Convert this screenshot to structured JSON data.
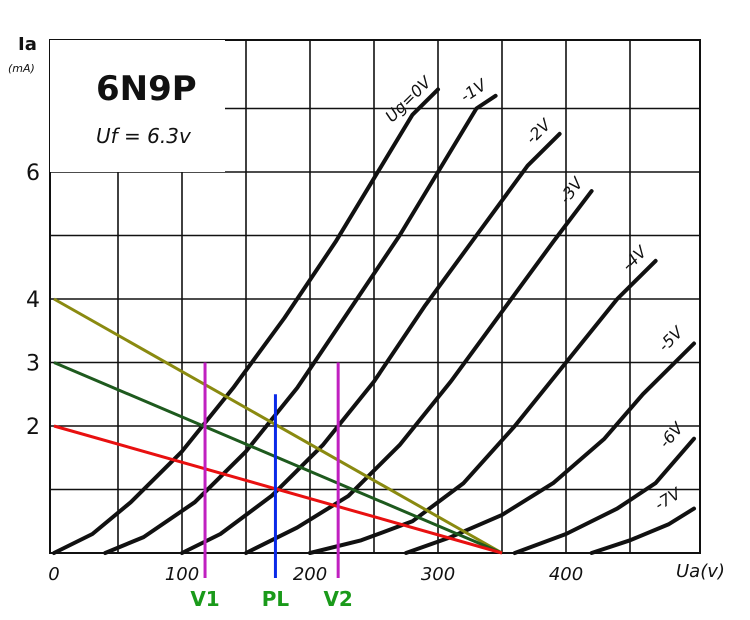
{
  "chart_data": {
    "type": "line",
    "title": "6N9P",
    "subtitle": "Uf = 6.3v",
    "xlabel": "Ua(v)",
    "ylabel": "Ia",
    "ylabel_unit": "(mA)",
    "xlim": [
      0,
      500
    ],
    "ylim": [
      0,
      8
    ],
    "grid": true,
    "x_ticks": [
      {
        "value": 0,
        "label": "0"
      },
      {
        "value": 100,
        "label": "100"
      },
      {
        "value": 200,
        "label": "200"
      },
      {
        "value": 300,
        "label": "300"
      },
      {
        "value": 400,
        "label": "400"
      }
    ],
    "y_ticks": [
      {
        "value": 2,
        "label": "2"
      },
      {
        "value": 3,
        "label": "3"
      },
      {
        "value": 4,
        "label": "4"
      },
      {
        "value": 6,
        "label": "6"
      }
    ],
    "curves": [
      {
        "name": "Ug=0V",
        "points": [
          [
            0,
            0
          ],
          [
            30,
            0.3
          ],
          [
            60,
            0.8
          ],
          [
            100,
            1.6
          ],
          [
            140,
            2.6
          ],
          [
            180,
            3.7
          ],
          [
            220,
            4.9
          ],
          [
            250,
            5.9
          ],
          [
            280,
            6.9
          ],
          [
            300,
            7.3
          ]
        ]
      },
      {
        "name": "-1V",
        "points": [
          [
            40,
            0
          ],
          [
            70,
            0.25
          ],
          [
            110,
            0.8
          ],
          [
            150,
            1.6
          ],
          [
            190,
            2.6
          ],
          [
            230,
            3.8
          ],
          [
            270,
            5.0
          ],
          [
            300,
            6.0
          ],
          [
            330,
            7.0
          ],
          [
            345,
            7.2
          ]
        ]
      },
      {
        "name": "-2V",
        "points": [
          [
            100,
            0
          ],
          [
            130,
            0.3
          ],
          [
            170,
            0.9
          ],
          [
            210,
            1.7
          ],
          [
            250,
            2.7
          ],
          [
            290,
            3.9
          ],
          [
            330,
            5.0
          ],
          [
            370,
            6.1
          ],
          [
            395,
            6.6
          ]
        ]
      },
      {
        "name": "-3V",
        "points": [
          [
            150,
            0
          ],
          [
            190,
            0.4
          ],
          [
            230,
            0.9
          ],
          [
            270,
            1.7
          ],
          [
            310,
            2.7
          ],
          [
            350,
            3.8
          ],
          [
            390,
            4.9
          ],
          [
            420,
            5.7
          ]
        ]
      },
      {
        "name": "-4V",
        "points": [
          [
            200,
            0
          ],
          [
            240,
            0.2
          ],
          [
            280,
            0.5
          ],
          [
            320,
            1.1
          ],
          [
            360,
            2.0
          ],
          [
            400,
            3.0
          ],
          [
            440,
            4.0
          ],
          [
            470,
            4.6
          ]
        ]
      },
      {
        "name": "-5V",
        "points": [
          [
            275,
            0
          ],
          [
            310,
            0.25
          ],
          [
            350,
            0.6
          ],
          [
            390,
            1.1
          ],
          [
            430,
            1.8
          ],
          [
            460,
            2.5
          ],
          [
            500,
            3.3
          ]
        ]
      },
      {
        "name": "-6V",
        "points": [
          [
            360,
            0
          ],
          [
            400,
            0.3
          ],
          [
            440,
            0.7
          ],
          [
            470,
            1.1
          ],
          [
            500,
            1.8
          ]
        ]
      },
      {
        "name": "-7V",
        "points": [
          [
            420,
            0
          ],
          [
            450,
            0.2
          ],
          [
            480,
            0.45
          ],
          [
            500,
            0.7
          ]
        ]
      }
    ],
    "load_lines": [
      {
        "color": "#8a8a10",
        "points": [
          [
            0,
            4
          ],
          [
            350,
            0
          ]
        ]
      },
      {
        "color": "#1e5a1e",
        "points": [
          [
            0,
            3
          ],
          [
            350,
            0
          ]
        ]
      },
      {
        "color": "#e81010",
        "points": [
          [
            0,
            2
          ],
          [
            350,
            0
          ]
        ]
      }
    ],
    "markers": [
      {
        "name": "V1",
        "x": 118,
        "y_top": 3.0,
        "color": "#c020c0",
        "label_color": "#1a9a1a"
      },
      {
        "name": "PL",
        "x": 173,
        "y_top": 2.5,
        "color": "#0a2ae8",
        "label_color": "#1a9a1a"
      },
      {
        "name": "V2",
        "x": 222,
        "y_top": 3.0,
        "color": "#c020c0",
        "label_color": "#1a9a1a"
      }
    ]
  }
}
